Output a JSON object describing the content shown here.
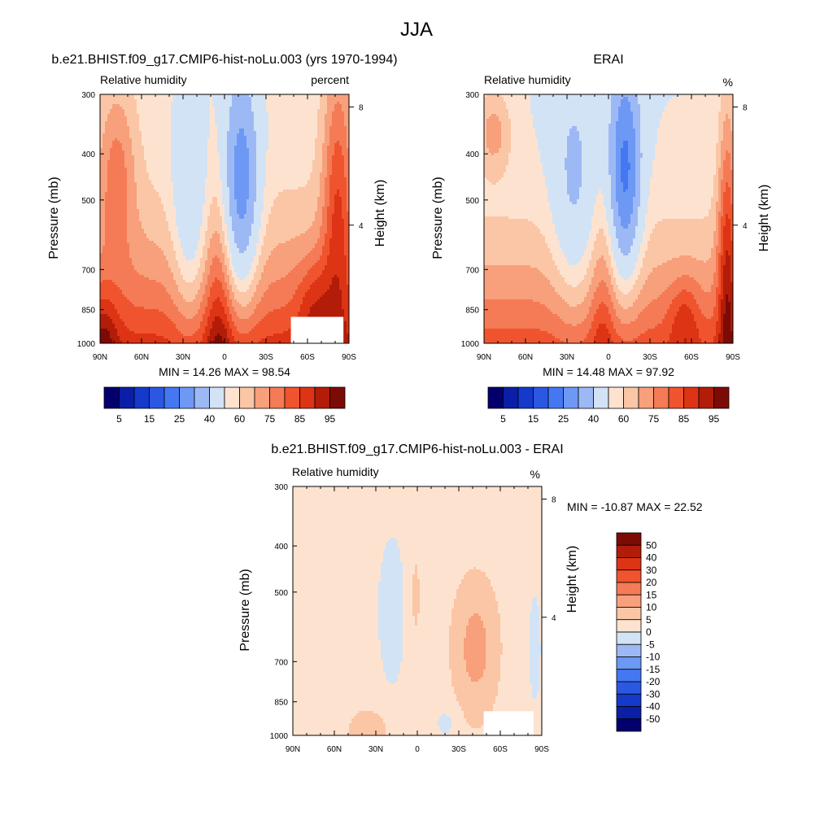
{
  "page_title": "JJA",
  "palette": {
    "full": [
      "#03006d",
      "#0a1ea6",
      "#1539cb",
      "#2a58e3",
      "#4478f2",
      "#6d99f5",
      "#9db9f5",
      "#d2e3f6",
      "#fde3cf",
      "#fbc6a6",
      "#f7a07b",
      "#f47b56",
      "#f0542e",
      "#dc3414",
      "#b21c08",
      "#7d0b05"
    ],
    "diff": [
      "#03006d",
      "#0a1ea6",
      "#1539cb",
      "#2a58e3",
      "#4478f2",
      "#6d99f5",
      "#9db9f5",
      "#d2e3f6",
      "#fde3cf",
      "#fbc6a6",
      "#f7a07b",
      "#f47b56",
      "#f0542e",
      "#dc3414",
      "#b21c08",
      "#7d0b05"
    ]
  },
  "chart_data": [
    {
      "id": "model",
      "type": "heatmap",
      "title": "b.e21.BHIST.f09_g17.CMIP6-hist-noLu.003 (yrs 1970-1994)",
      "variable": "Relative humidity",
      "units": "percent",
      "ylabel": "Pressure (mb)",
      "y2label": "Height (km)",
      "x_ticks": [
        "90N",
        "60N",
        "30N",
        "0",
        "30S",
        "60S",
        "90S"
      ],
      "x_values": [
        90,
        60,
        30,
        0,
        -30,
        -60,
        -90
      ],
      "y_ticks": [
        "300",
        "400",
        "500",
        "700",
        "850",
        "1000"
      ],
      "y_values": [
        300,
        400,
        500,
        700,
        850,
        1000
      ],
      "y2_ticks": [
        "8",
        "4"
      ],
      "y2_values": [
        8,
        4
      ],
      "stats": "MIN =  14.26  MAX =  98.54",
      "min": 14.26,
      "max": 98.54,
      "levels": [
        "5",
        "15",
        "25",
        "40",
        "60",
        "75",
        "85",
        "95"
      ],
      "field": "model",
      "missing_box": {
        "lat": [
          -48,
          -86
        ],
        "p": [
          880,
          1000
        ]
      }
    },
    {
      "id": "obs",
      "type": "heatmap",
      "title": "ERAI",
      "variable": "Relative humidity",
      "units": "%",
      "ylabel": "Pressure (mb)",
      "y2label": "Height (km)",
      "x_ticks": [
        "90N",
        "60N",
        "30N",
        "0",
        "30S",
        "60S",
        "90S"
      ],
      "x_values": [
        90,
        60,
        30,
        0,
        -30,
        -60,
        -90
      ],
      "y_ticks": [
        "300",
        "400",
        "500",
        "700",
        "850",
        "1000"
      ],
      "y_values": [
        300,
        400,
        500,
        700,
        850,
        1000
      ],
      "y2_ticks": [
        "8",
        "4"
      ],
      "y2_values": [
        8,
        4
      ],
      "stats": "MIN =  14.48  MAX =  97.92",
      "min": 14.48,
      "max": 97.92,
      "levels": [
        "5",
        "15",
        "25",
        "40",
        "60",
        "75",
        "85",
        "95"
      ],
      "field": "obs"
    },
    {
      "id": "diff",
      "type": "heatmap",
      "title": "b.e21.BHIST.f09_g17.CMIP6-hist-noLu.003 - ERAI",
      "variable": "Relative humidity",
      "units": "%",
      "ylabel": "Pressure (mb)",
      "y2label": "Height (km)",
      "x_ticks": [
        "90N",
        "60N",
        "30N",
        "0",
        "30S",
        "60S",
        "90S"
      ],
      "x_values": [
        90,
        60,
        30,
        0,
        -30,
        -60,
        -90
      ],
      "y_ticks": [
        "300",
        "400",
        "500",
        "700",
        "850",
        "1000"
      ],
      "y_values": [
        300,
        400,
        500,
        700,
        850,
        1000
      ],
      "y2_ticks": [
        "8",
        "4"
      ],
      "y2_values": [
        8,
        4
      ],
      "stats": "MIN = -10.87  MAX =  22.52",
      "min": -10.87,
      "max": 22.52,
      "levels": [
        "50",
        "40",
        "30",
        "20",
        "15",
        "10",
        "5",
        "0",
        "-5",
        "-10",
        "-15",
        "-20",
        "-30",
        "-40",
        "-50"
      ],
      "field": "diff",
      "missing_box": {
        "lat": [
          -48,
          -84
        ],
        "p": [
          890,
          1000
        ]
      }
    }
  ]
}
